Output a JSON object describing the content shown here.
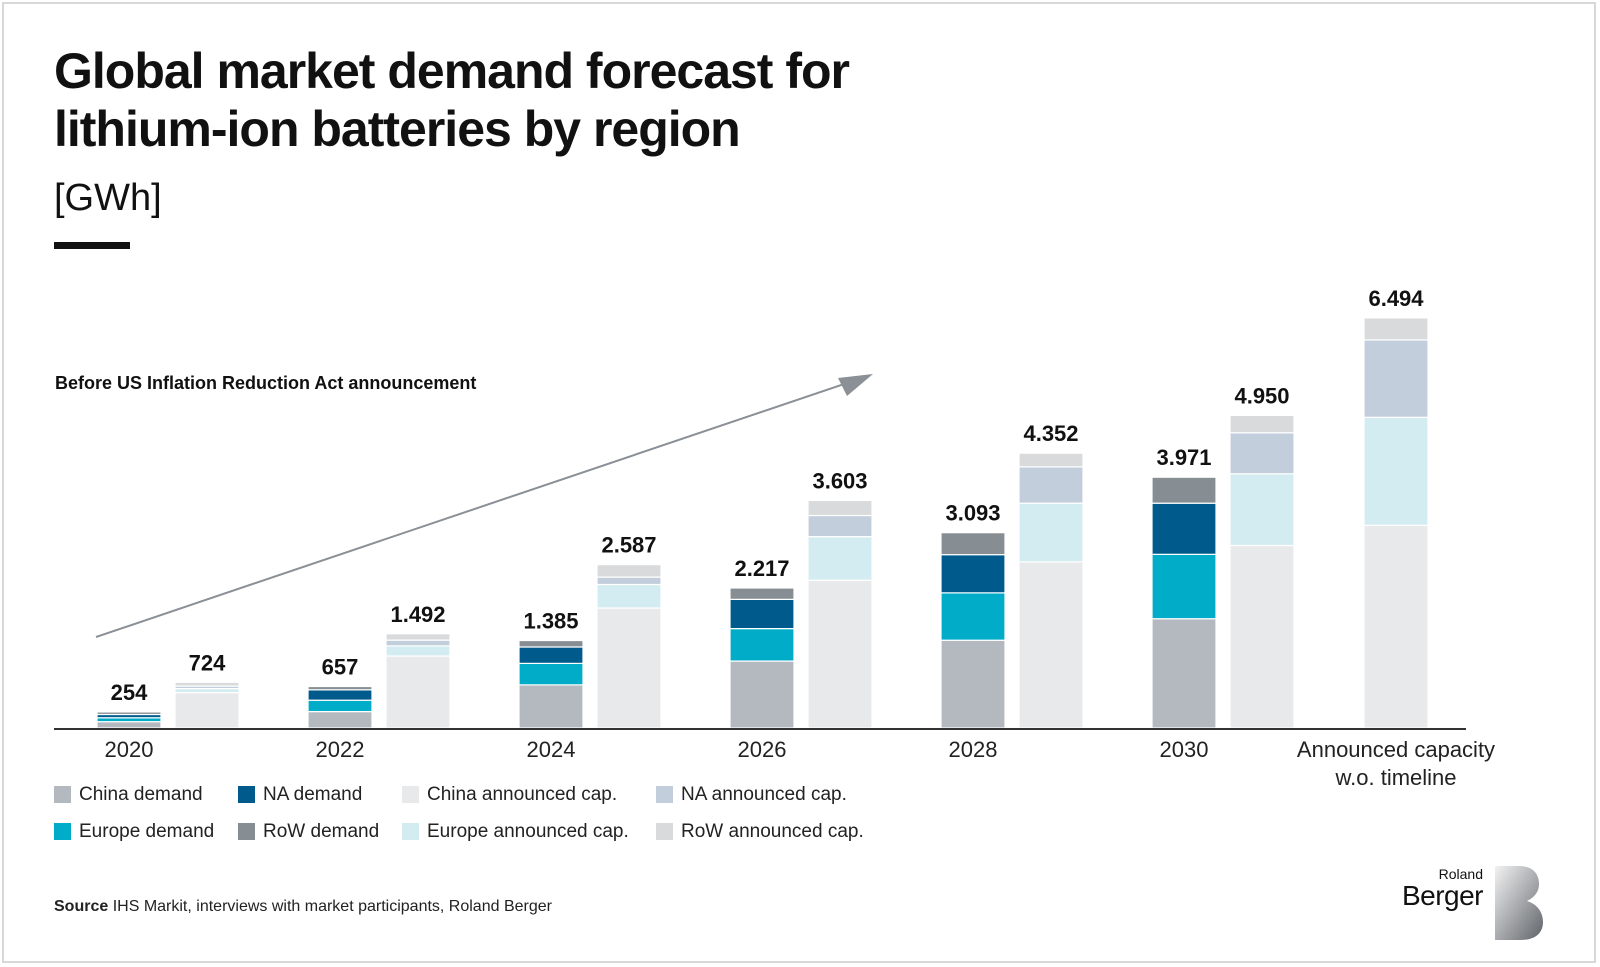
{
  "header": {
    "title": "Global market demand forecast for lithium-ion batteries by region",
    "unit": "[GWh]"
  },
  "annotation": "Before US Inflation Reduction Act announcement",
  "source": {
    "label": "Source",
    "text": "IHS Markit, interviews with market participants, Roland Berger"
  },
  "logo": {
    "line1": "Roland",
    "line2": "Berger"
  },
  "colors": {
    "china_demand": "#b3b9bf",
    "europe_demand": "#00acc8",
    "na_demand": "#005b8c",
    "row_demand": "#868d93",
    "china_cap": "#e8e9ea",
    "europe_cap": "#d3ecf1",
    "na_cap": "#c3cedd",
    "row_cap": "#d8dadc"
  },
  "chart_data": {
    "type": "bar",
    "stacked": true,
    "ylim": [
      0,
      7000
    ],
    "grid": false,
    "legend_placement": "bottom-left",
    "groups": [
      {
        "label": "2020",
        "bars": [
          {
            "kind": "demand",
            "total_label": "254",
            "total": 254,
            "segments": {
              "china_demand": 100,
              "europe_demand": 62,
              "na_demand": 52,
              "row_demand": 40
            }
          },
          {
            "kind": "capacity",
            "total_label": "724",
            "total": 724,
            "segments": {
              "china_cap": 560,
              "europe_cap": 64,
              "na_cap": 40,
              "row_cap": 60
            }
          }
        ]
      },
      {
        "label": "2022",
        "bars": [
          {
            "kind": "demand",
            "total_label": "657",
            "total": 657,
            "segments": {
              "china_demand": 260,
              "europe_demand": 180,
              "na_demand": 165,
              "row_demand": 52
            }
          },
          {
            "kind": "capacity",
            "total_label": "1.492",
            "total": 1492,
            "segments": {
              "china_cap": 1140,
              "europe_cap": 160,
              "na_cap": 92,
              "row_cap": 100
            }
          }
        ]
      },
      {
        "label": "2024",
        "bars": [
          {
            "kind": "demand",
            "total_label": "1.385",
            "total": 1385,
            "segments": {
              "china_demand": 683,
              "europe_demand": 340,
              "na_demand": 260,
              "row_demand": 102
            }
          },
          {
            "kind": "capacity",
            "total_label": "2.587",
            "total": 2587,
            "segments": {
              "china_cap": 1900,
              "europe_cap": 372,
              "na_cap": 118,
              "row_cap": 197
            }
          }
        ]
      },
      {
        "label": "2026",
        "bars": [
          {
            "kind": "demand",
            "total_label": "2.217",
            "total": 2217,
            "segments": {
              "china_demand": 1060,
              "europe_demand": 514,
              "na_demand": 463,
              "row_demand": 180
            }
          },
          {
            "kind": "capacity",
            "total_label": "3.603",
            "total": 3603,
            "segments": {
              "china_cap": 2340,
              "europe_cap": 690,
              "na_cap": 335,
              "row_cap": 238
            }
          }
        ]
      },
      {
        "label": "2028",
        "bars": [
          {
            "kind": "demand",
            "total_label": "3.093",
            "total": 3093,
            "segments": {
              "china_demand": 1390,
              "europe_demand": 750,
              "na_demand": 605,
              "row_demand": 348
            }
          },
          {
            "kind": "capacity",
            "total_label": "4.352",
            "total": 4352,
            "segments": {
              "china_cap": 2630,
              "europe_cap": 930,
              "na_cap": 575,
              "row_cap": 217
            }
          }
        ]
      },
      {
        "label": "2030",
        "bars": [
          {
            "kind": "demand",
            "total_label": "3.971",
            "total": 3971,
            "segments": {
              "china_demand": 1730,
              "europe_demand": 1020,
              "na_demand": 810,
              "row_demand": 411
            }
          },
          {
            "kind": "capacity",
            "total_label": "4.950",
            "total": 4950,
            "segments": {
              "china_cap": 2890,
              "europe_cap": 1135,
              "na_cap": 650,
              "row_cap": 275
            }
          }
        ]
      },
      {
        "label": "Announced capacity\nw.o. timeline",
        "bars": [
          {
            "kind": "capacity",
            "total_label": "6.494",
            "total": 6494,
            "segments": {
              "china_cap": 3210,
              "europe_cap": 1710,
              "na_cap": 1225,
              "row_cap": 349
            }
          }
        ]
      }
    ],
    "legend": [
      {
        "key": "china_demand",
        "label": "China demand"
      },
      {
        "key": "na_demand",
        "label": "NA demand"
      },
      {
        "key": "china_cap",
        "label": "China announced cap."
      },
      {
        "key": "na_cap",
        "label": "NA announced cap."
      },
      {
        "key": "europe_demand",
        "label": "Europe demand"
      },
      {
        "key": "row_demand",
        "label": "RoW demand"
      },
      {
        "key": "europe_cap",
        "label": "Europe announced cap."
      },
      {
        "key": "row_cap",
        "label": "RoW announced cap."
      }
    ]
  }
}
